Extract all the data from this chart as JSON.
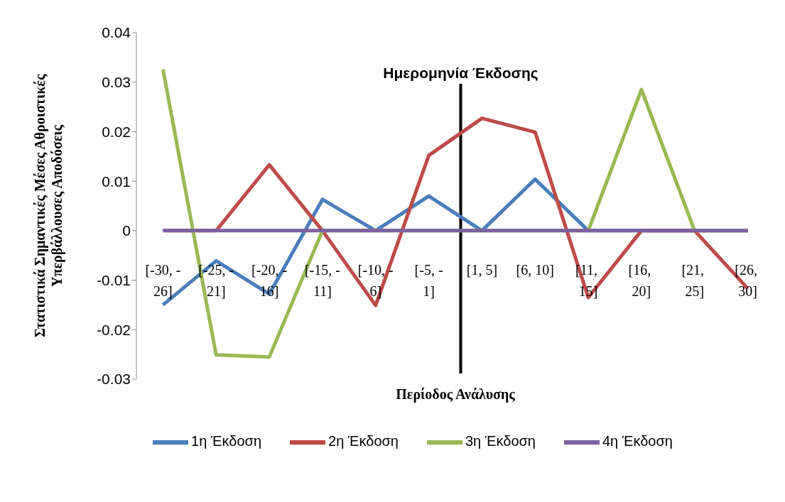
{
  "chart_data": {
    "type": "line",
    "xlabel": "Περίοδος Ανάλυσης",
    "ylabel": "Στατιστικά Σημαντικές Μέσες Αθροιστικές Υπερβάλλουσες Αποδόσεις",
    "categories": [
      "[-30, -26]",
      "[-25, -21]",
      "[-20, -16]",
      "[-15, -11]",
      "[-10, -6]",
      "[-5, -1]",
      "[1, 5]",
      "[6, 10]",
      "[11, 15]",
      "[16, 20]",
      "[21, 25]",
      "[26, 30]"
    ],
    "series": [
      {
        "name": "1η Έκδοση",
        "color": "#4a7ebb",
        "values": [
          -0.015,
          -0.0061,
          -0.0128,
          0.0063,
          0,
          0.007,
          0,
          0.0104,
          0,
          0,
          0,
          0
        ]
      },
      {
        "name": "2η Έκδοση",
        "color": "#be4b48",
        "values": [
          0,
          0,
          0.0133,
          0,
          -0.0151,
          0.0152,
          0.0227,
          0.0199,
          -0.0135,
          0,
          0,
          -0.0117
        ]
      },
      {
        "name": "3η Έκδοση",
        "color": "#98b954",
        "values": [
          0.0326,
          -0.0251,
          -0.0255,
          0,
          0,
          0,
          0,
          0,
          0,
          0.0285,
          0,
          0
        ]
      },
      {
        "name": "4η Έκδοση",
        "color": "#7d60a0",
        "values": [
          0,
          0,
          0,
          0,
          0,
          0,
          0,
          0,
          0,
          0,
          0,
          0
        ]
      }
    ],
    "ylim": [
      -0.03,
      0.04
    ],
    "yticks": [
      -0.03,
      -0.02,
      -0.01,
      0,
      0.01,
      0.02,
      0.03,
      0.04
    ],
    "annotations": [
      "Ημερομηνία Έκδοσης"
    ],
    "grid": false,
    "legend": "bottom",
    "marker": "none",
    "line_style": "solid"
  }
}
